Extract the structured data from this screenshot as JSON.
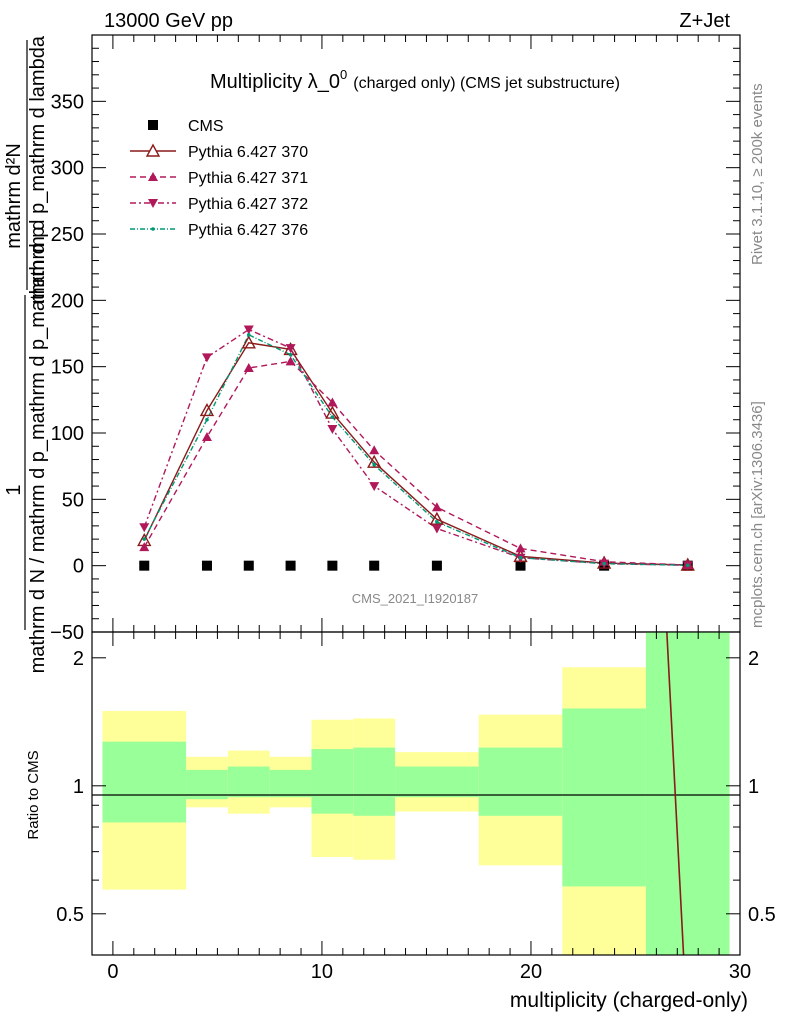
{
  "header": {
    "left": "13000 GeV pp",
    "right": "Z+Jet"
  },
  "side": {
    "rivet": "Rivet 3.1.10, ≥ 200k events",
    "mcplots": "mcplots.cern.ch [arXiv:1306.3436]"
  },
  "labels": {
    "ylabel_upper_a": "mathrm d²N",
    "ylabel_upper_b": "mathrm d p_mathrm d lambda",
    "ylabel_upper_c": "mathrm d N / mathrm d p_mathrm d p_mathrm d p",
    "ylabel_upper_one": "1",
    "ylabel_lower": "Ratio to CMS",
    "xlabel": "multiplicity (charged-only)",
    "watermark": "CMS_2021_I1920187"
  },
  "chart_data": {
    "type": "line",
    "title": "Multiplicity λ_0⁰ (charged only) (CMS jet substructure)",
    "title_main": "Multiplicity λ_0",
    "title_sup": "0",
    "title_tail": "(charged only) (CMS jet substructure)",
    "xlim": [
      -1,
      30
    ],
    "ylim": [
      -50,
      400
    ],
    "ratio_ylim": [
      0.4,
      2.3
    ],
    "x_ticks": [
      "0",
      "10",
      "20",
      "30"
    ],
    "y_ticks": [
      "−50",
      "0",
      "50",
      "100",
      "150",
      "200",
      "250",
      "300",
      "350"
    ],
    "ratio_ticks": [
      "0.5",
      "1",
      "2"
    ],
    "legend_position": "top-left",
    "series": [
      {
        "name": "CMS",
        "color": "#000000",
        "marker": "square",
        "x": [
          1.5,
          4.5,
          6.5,
          8.5,
          10.5,
          12.5,
          15.5,
          19.5,
          23.5,
          27.5
        ],
        "values": [
          0,
          0,
          0,
          0,
          0,
          0,
          0,
          0,
          0,
          0
        ]
      },
      {
        "name": "Pythia 6.427 370",
        "color": "#8b1a1a",
        "marker": "triangle-open",
        "dash": "",
        "x": [
          1.5,
          4.5,
          6.5,
          8.5,
          10.5,
          12.5,
          15.5,
          19.5,
          23.5,
          27.5
        ],
        "values": [
          19,
          117,
          168,
          163,
          115,
          78,
          35,
          7,
          2,
          0.5
        ]
      },
      {
        "name": "Pythia 6.427 371",
        "color": "#b0185a",
        "marker": "triangle-up",
        "dash": "6,4",
        "x": [
          1.5,
          4.5,
          6.5,
          8.5,
          10.5,
          12.5,
          15.5,
          19.5,
          23.5,
          27.5
        ],
        "values": [
          14,
          97,
          149,
          154,
          123,
          87,
          44,
          13,
          3,
          0.5
        ]
      },
      {
        "name": "Pythia 6.427 372",
        "color": "#b0185a",
        "marker": "triangle-down",
        "dash": "6,3,2,3",
        "x": [
          1.5,
          4.5,
          6.5,
          8.5,
          10.5,
          12.5,
          15.5,
          19.5,
          23.5,
          27.5
        ],
        "values": [
          29,
          157,
          178,
          164,
          103,
          60,
          28,
          6,
          1.5,
          0.3
        ]
      },
      {
        "name": "Pythia 6.427 376",
        "color": "#009977",
        "marker": "dot",
        "dash": "5,2,1,2",
        "x": [
          1.5,
          4.5,
          6.5,
          8.5,
          10.5,
          12.5,
          15.5,
          19.5,
          23.5,
          27.5
        ],
        "values": [
          20,
          110,
          174,
          159,
          112,
          76,
          33,
          6,
          1.5,
          0.3
        ]
      }
    ],
    "ratio_bands": [
      {
        "x0": -0.5,
        "x1": 3.5,
        "y_lo": 0.57,
        "y_hi": 1.5,
        "g_lo": 0.82,
        "g_hi": 1.27
      },
      {
        "x0": 3.5,
        "x1": 5.5,
        "y_lo": 0.89,
        "y_hi": 1.17,
        "g_lo": 0.93,
        "g_hi": 1.09
      },
      {
        "x0": 5.5,
        "x1": 7.5,
        "y_lo": 0.86,
        "y_hi": 1.21,
        "g_lo": 0.94,
        "g_hi": 1.11
      },
      {
        "x0": 7.5,
        "x1": 9.5,
        "y_lo": 0.89,
        "y_hi": 1.17,
        "g_lo": 0.94,
        "g_hi": 1.09
      },
      {
        "x0": 9.5,
        "x1": 11.5,
        "y_lo": 0.68,
        "y_hi": 1.43,
        "g_lo": 0.86,
        "g_hi": 1.22
      },
      {
        "x0": 11.5,
        "x1": 13.5,
        "y_lo": 0.67,
        "y_hi": 1.44,
        "g_lo": 0.85,
        "g_hi": 1.23
      },
      {
        "x0": 13.5,
        "x1": 17.5,
        "y_lo": 0.87,
        "y_hi": 1.2,
        "g_lo": 0.94,
        "g_hi": 1.11
      },
      {
        "x0": 17.5,
        "x1": 21.5,
        "y_lo": 0.65,
        "y_hi": 1.47,
        "g_lo": 0.85,
        "g_hi": 1.23
      },
      {
        "x0": 21.5,
        "x1": 25.5,
        "y_lo": 0.4,
        "y_hi": 1.9,
        "g_lo": 0.58,
        "g_hi": 1.52
      },
      {
        "x0": 25.5,
        "x1": 29.5,
        "y_lo": 0.4,
        "y_hi": 2.3,
        "g_lo": 0.4,
        "g_hi": 2.3
      }
    ],
    "ratio_line": {
      "color": "#8b1a1a",
      "x0": 26.5,
      "y0": 2.3,
      "x1": 27.3,
      "y1": 0.4
    },
    "band_colors": {
      "yellow": "#ffff99",
      "green": "#99ff99"
    }
  }
}
